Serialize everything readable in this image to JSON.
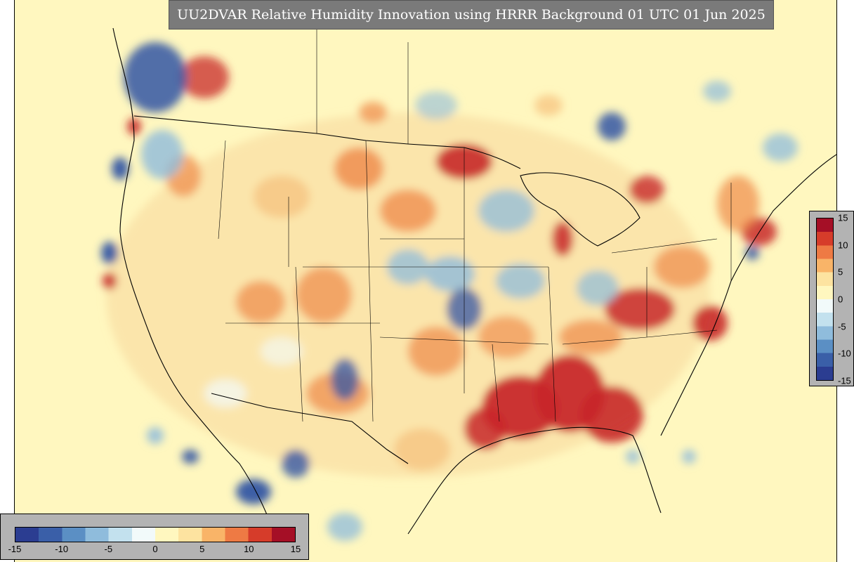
{
  "title": "UU2DVAR Relative Humidity Innovation using HRRR Background 01 UTC 01 Jun 2025",
  "colorbar": {
    "min": -15,
    "max": 15,
    "ticks": [
      "-15",
      "-10",
      "-5",
      "0",
      "5",
      "10",
      "15"
    ],
    "vertical_ticks": [
      "15",
      "10",
      "5",
      "0",
      "-5",
      "-10",
      "-15"
    ],
    "colors": [
      "#2b3d91",
      "#3a5fa8",
      "#5b8fc4",
      "#8fbcdc",
      "#c3e1ee",
      "#f2fafa",
      "#fff7bf",
      "#fde3a0",
      "#f9b468",
      "#ee7a44",
      "#d63c2a",
      "#a50f26"
    ]
  }
}
